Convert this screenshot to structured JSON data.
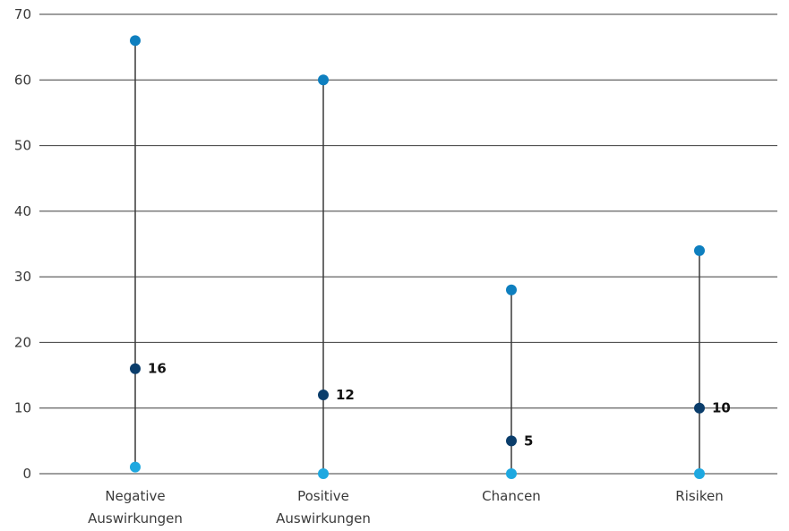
{
  "chart_data": {
    "type": "dot-range",
    "categories": [
      [
        "Negative",
        "Auswirkungen"
      ],
      [
        "Positive",
        "Auswirkungen"
      ],
      [
        "Chancen"
      ],
      [
        "Risiken"
      ]
    ],
    "series": [
      {
        "values": [
          66,
          60,
          28,
          34
        ],
        "color": "#0e7fbf"
      },
      {
        "values": [
          16,
          12,
          5,
          10
        ],
        "color": "#0a3d6b",
        "show_labels": true
      },
      {
        "values": [
          1,
          0,
          0,
          0
        ],
        "color": "#1ea8e0"
      }
    ],
    "ylim": [
      0,
      70
    ],
    "yticks": [
      0,
      10,
      20,
      30,
      40,
      50,
      60,
      70
    ],
    "grid": true
  }
}
